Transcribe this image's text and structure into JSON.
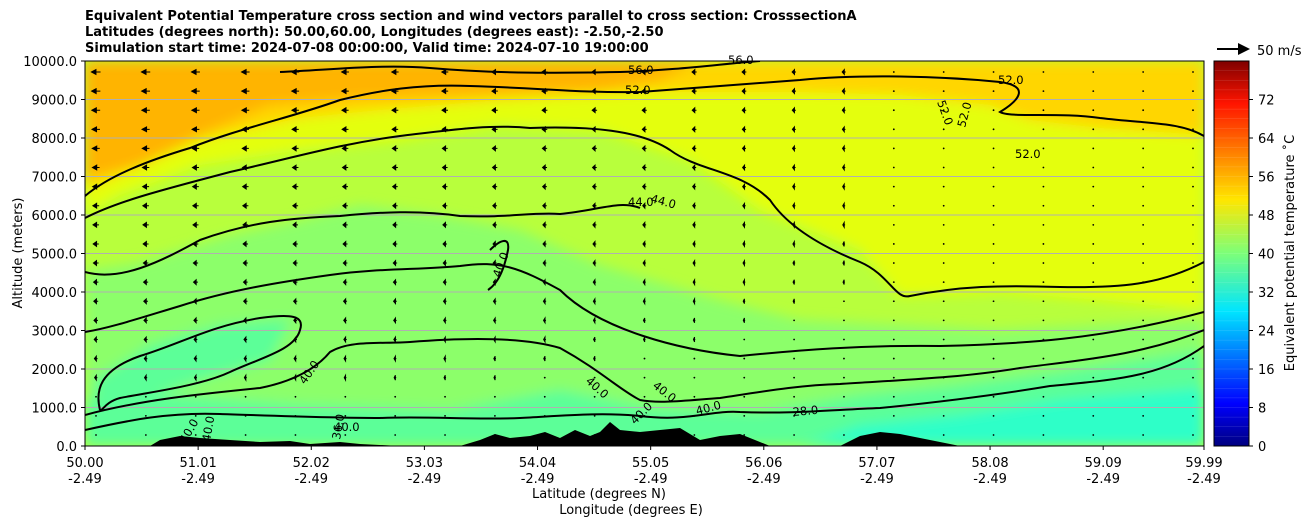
{
  "chart_data": {
    "type": "heatmap",
    "title_lines": [
      "Equivalent Potential Temperature cross section and wind vectors parallel to cross section: CrosssectionA",
      "Latitudes (degrees north): 50.00,60.00, Longitudes (degrees east): -2.50,-2.50",
      "Simulation start time: 2024-07-08 00:00:00, Valid time: 2024-07-10 19:00:00"
    ],
    "ylabel": "Altitude (meters)",
    "xlabel_lines": [
      "Latitude (degrees N)",
      "Longitude (degrees E)"
    ],
    "ylim": [
      0,
      10000
    ],
    "yticks": [
      "0.0",
      "1000.0",
      "2000.0",
      "3000.0",
      "4000.0",
      "5000.0",
      "6000.0",
      "7000.0",
      "8000.0",
      "9000.0",
      "10000.0"
    ],
    "ytick_values": [
      0,
      1000,
      2000,
      3000,
      4000,
      5000,
      6000,
      7000,
      8000,
      9000,
      10000
    ],
    "xtick_positions": [
      50.0,
      51.01,
      52.02,
      53.03,
      54.04,
      55.05,
      56.06,
      57.07,
      58.08,
      59.09,
      59.99
    ],
    "xticks_lat": [
      "50.00",
      "51.01",
      "52.02",
      "53.03",
      "54.04",
      "55.05",
      "56.06",
      "57.07",
      "58.08",
      "59.09",
      "59.99"
    ],
    "xticks_lon": [
      "-2.49",
      "-2.49",
      "-2.49",
      "-2.49",
      "-2.49",
      "-2.49",
      "-2.49",
      "-2.49",
      "-2.49",
      "-2.49",
      "-2.49"
    ],
    "xlim": [
      50.0,
      59.99
    ],
    "grid": "horizontal",
    "colorbar": {
      "label": "Equivalent potential temperature ˚C",
      "ticks": [
        "0",
        "8",
        "16",
        "24",
        "32",
        "40",
        "48",
        "56",
        "64",
        "72"
      ],
      "tick_values": [
        0,
        8,
        16,
        24,
        32,
        40,
        48,
        56,
        64,
        72
      ],
      "range": [
        0,
        80
      ]
    },
    "quiver_key": "50 m/s",
    "contour_labels": [
      "56.0",
      "56.0",
      "52.0",
      "52.0",
      "52.0",
      "52.0",
      "52.0",
      "44.0",
      "44.0",
      "40.0",
      "40.0",
      "40.0",
      "40.0",
      "40.0",
      "40.0",
      "40.0",
      "40.0",
      "40.0",
      "36.0",
      "28.0"
    ],
    "field_regions": [
      {
        "zone": "top-left",
        "value": 56
      },
      {
        "zone": "upper band",
        "value": 50
      },
      {
        "zone": "mid troposphere",
        "value": 46
      },
      {
        "zone": "lower troposphere",
        "value": 41
      },
      {
        "zone": "boundary layer south",
        "value": 36
      },
      {
        "zone": "boundary layer north",
        "value": 30
      }
    ]
  },
  "colors": {
    "c56": "#ffb400",
    "c52": "#ffd600",
    "c48": "#e4ff0f",
    "c44": "#b8ff3c",
    "c40": "#8cff6a",
    "c36": "#5cff98",
    "c32": "#2fffc8",
    "terrain": "#000000"
  }
}
